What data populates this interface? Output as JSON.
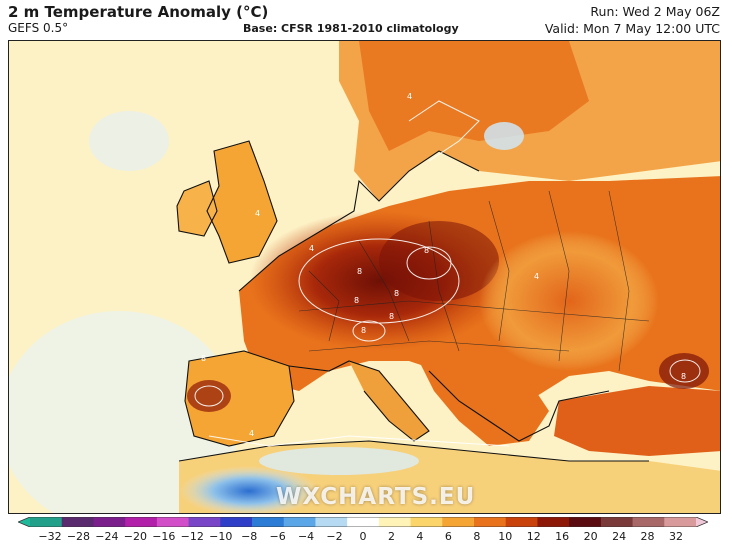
{
  "header": {
    "title": "2 m Temperature Anomaly (°C)",
    "model": "GEFS 0.5°",
    "base": "Base: CFSR 1981-2010 climatology",
    "run": "Run: Wed 2 May 06Z",
    "valid": "Valid: Mon 7 May 12:00 UTC"
  },
  "map": {
    "region": "Europe",
    "watermark": "WXCHARTS.EU",
    "contour_labels": [
      "4",
      "8",
      "8",
      "8",
      "8",
      "8",
      "8",
      "8",
      "8",
      "4",
      "4",
      "4",
      "4"
    ]
  },
  "colorbar": {
    "tick_labels": [
      "−32",
      "−28",
      "−24",
      "−20",
      "−16",
      "−12",
      "−10",
      "−8",
      "−6",
      "−4",
      "−2",
      "0",
      "2",
      "4",
      "6",
      "8",
      "10",
      "12",
      "16",
      "20",
      "24",
      "28",
      "32"
    ],
    "colors": [
      "#1fb89a",
      "#23a08a",
      "#5a2a6e",
      "#7a1f8c",
      "#b21fa8",
      "#d24ec8",
      "#7a46c8",
      "#2f3fc8",
      "#2c7cd6",
      "#5aa6e6",
      "#b6daf2",
      "#ffffff",
      "#fff3b8",
      "#fbd56a",
      "#f5a534",
      "#e8731c",
      "#c9420c",
      "#8e1808",
      "#5a0c10",
      "#7a3a3a",
      "#a86868",
      "#d89a9a",
      "#f0c8d8"
    ]
  }
}
